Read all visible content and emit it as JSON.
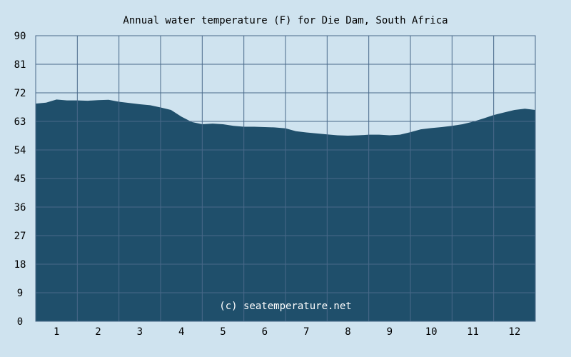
{
  "chart_data": {
    "type": "area",
    "title": "Annual water temperature (F) for Die Dam, South Africa",
    "watermark": "(c) seatemperature.net",
    "ylim": [
      0,
      90
    ],
    "y_ticks": [
      "0",
      "9",
      "18",
      "27",
      "36",
      "45",
      "54",
      "63",
      "72",
      "81",
      "90"
    ],
    "x_ticks": [
      "1",
      "2",
      "3",
      "4",
      "5",
      "6",
      "7",
      "8",
      "9",
      "10",
      "11",
      "12"
    ],
    "x_domain": [
      0.5,
      12.5
    ],
    "grid": true,
    "series": [
      {
        "x": [
          0.5,
          0.75,
          1.0,
          1.25,
          1.5,
          1.75,
          2.0,
          2.25,
          2.5,
          2.75,
          3.0,
          3.25,
          3.5,
          3.75,
          4.0,
          4.25,
          4.5,
          4.75,
          5.0,
          5.25,
          5.5,
          5.75,
          6.0,
          6.25,
          6.5,
          6.75,
          7.0,
          7.25,
          7.5,
          7.75,
          8.0,
          8.25,
          8.5,
          8.75,
          9.0,
          9.25,
          9.5,
          9.75,
          10.0,
          10.25,
          10.5,
          10.75,
          11.0,
          11.25,
          11.5,
          11.75,
          12.0,
          12.25,
          12.5
        ],
        "values": [
          68.6,
          68.9,
          69.9,
          69.6,
          69.6,
          69.5,
          69.7,
          69.8,
          69.2,
          68.8,
          68.4,
          68.1,
          67.4,
          66.6,
          64.5,
          62.8,
          62.1,
          62.3,
          62.1,
          61.6,
          61.3,
          61.3,
          61.2,
          61.1,
          60.8,
          59.9,
          59.5,
          59.2,
          58.9,
          58.6,
          58.5,
          58.6,
          58.8,
          58.8,
          58.6,
          58.8,
          59.6,
          60.5,
          60.9,
          61.2,
          61.6,
          62.1,
          62.9,
          63.9,
          65.0,
          65.8,
          66.6,
          67.0,
          66.6
        ]
      }
    ],
    "colors": {
      "background": "#cfe3ef",
      "area": "#1f4f6b",
      "grid": "#49698a",
      "text": "#000000",
      "watermark": "#ffffff"
    }
  }
}
